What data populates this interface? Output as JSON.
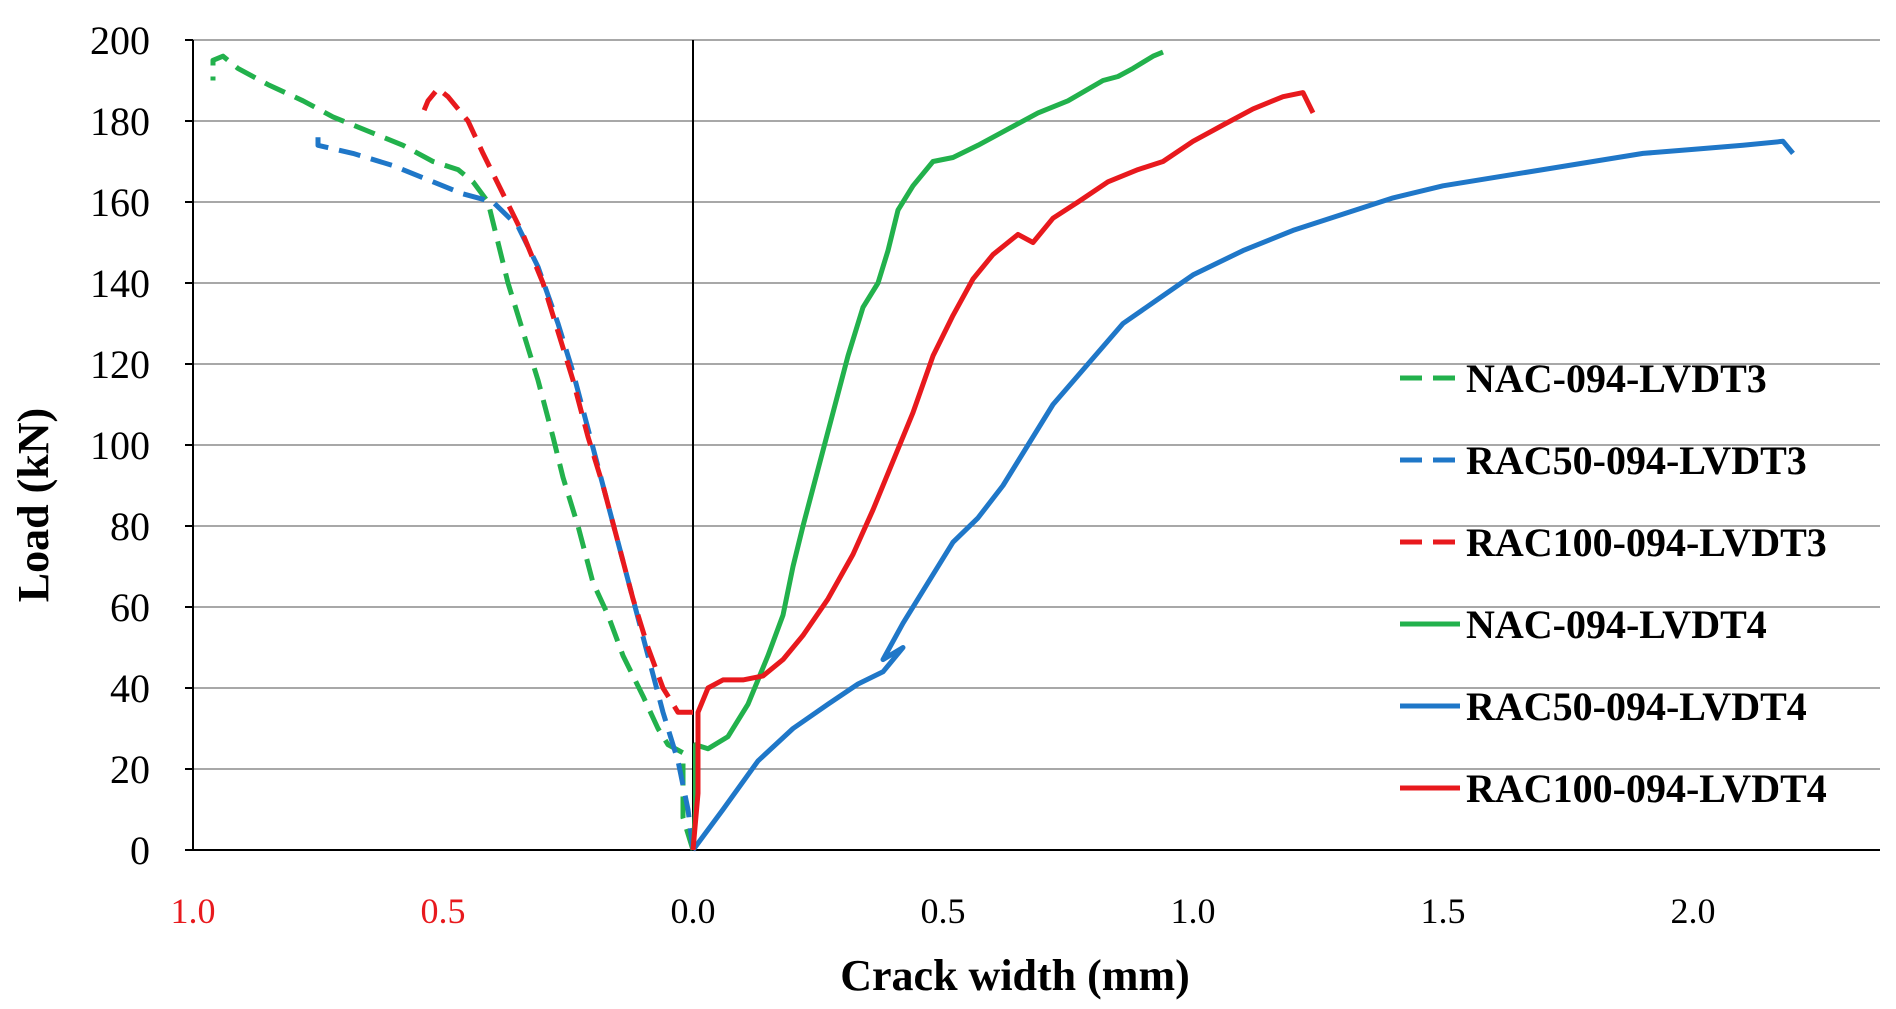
{
  "chart_data": {
    "type": "line",
    "xlabel": "Crack width (mm)",
    "ylabel": "Load (kN)",
    "ylim": [
      0,
      200
    ],
    "x_range_display": [
      -1.0,
      2.4
    ],
    "grid": "horizontal",
    "legend_position": "right",
    "y_ticks": [
      "0",
      "20",
      "40",
      "60",
      "80",
      "100",
      "120",
      "140",
      "160",
      "180",
      "200"
    ],
    "x_ticks_left": [
      "1.0",
      "0.5"
    ],
    "x_ticks_right": [
      "0.0",
      "0.5",
      "1.0",
      "1.5",
      "2.0"
    ],
    "x_ticks_left_color": "#e8191d",
    "note": "LVDT3 curves are plotted mirrored to the left of x = 0",
    "series": [
      {
        "name": "NAC-094-LVDT3",
        "color": "#22b14c",
        "dash": true,
        "side": "left",
        "points": [
          [
            0,
            0
          ],
          [
            0.02,
            8
          ],
          [
            0.02,
            24
          ],
          [
            0.05,
            26
          ],
          [
            0.07,
            30
          ],
          [
            0.1,
            38
          ],
          [
            0.14,
            48
          ],
          [
            0.17,
            58
          ],
          [
            0.2,
            66
          ],
          [
            0.23,
            80
          ],
          [
            0.26,
            92
          ],
          [
            0.28,
            102
          ],
          [
            0.31,
            116
          ],
          [
            0.34,
            128
          ],
          [
            0.37,
            140
          ],
          [
            0.39,
            150
          ],
          [
            0.41,
            160
          ],
          [
            0.44,
            165
          ],
          [
            0.47,
            168
          ],
          [
            0.52,
            170
          ],
          [
            0.58,
            174
          ],
          [
            0.66,
            178
          ],
          [
            0.72,
            181
          ],
          [
            0.78,
            185
          ],
          [
            0.85,
            189
          ],
          [
            0.91,
            193
          ],
          [
            0.94,
            196
          ],
          [
            0.96,
            195
          ],
          [
            0.96,
            190
          ]
        ]
      },
      {
        "name": "RAC50-094-LVDT3",
        "color": "#1f77c8",
        "dash": true,
        "side": "left",
        "points": [
          [
            0,
            0
          ],
          [
            0.01,
            10
          ],
          [
            0.03,
            22
          ],
          [
            0.06,
            34
          ],
          [
            0.09,
            48
          ],
          [
            0.12,
            62
          ],
          [
            0.15,
            76
          ],
          [
            0.18,
            90
          ],
          [
            0.21,
            104
          ],
          [
            0.24,
            118
          ],
          [
            0.27,
            130
          ],
          [
            0.31,
            144
          ],
          [
            0.35,
            154
          ],
          [
            0.4,
            160
          ],
          [
            0.46,
            162
          ],
          [
            0.52,
            165
          ],
          [
            0.6,
            169
          ],
          [
            0.68,
            172
          ],
          [
            0.75,
            174
          ],
          [
            0.75,
            176
          ]
        ]
      },
      {
        "name": "RAC100-094-LVDT3",
        "color": "#e8191d",
        "dash": true,
        "side": "left",
        "points": [
          [
            0,
            34
          ],
          [
            0.03,
            34
          ],
          [
            0.06,
            40
          ],
          [
            0.09,
            50
          ],
          [
            0.12,
            62
          ],
          [
            0.15,
            76
          ],
          [
            0.18,
            90
          ],
          [
            0.21,
            102
          ],
          [
            0.24,
            116
          ],
          [
            0.27,
            128
          ],
          [
            0.3,
            140
          ],
          [
            0.34,
            152
          ],
          [
            0.38,
            162
          ],
          [
            0.42,
            172
          ],
          [
            0.45,
            180
          ],
          [
            0.49,
            186
          ],
          [
            0.51,
            188
          ],
          [
            0.53,
            185
          ],
          [
            0.54,
            182
          ]
        ]
      },
      {
        "name": "NAC-094-LVDT4",
        "color": "#22b14c",
        "dash": false,
        "side": "right",
        "points": [
          [
            0,
            0
          ],
          [
            0.005,
            10
          ],
          [
            0.005,
            26
          ],
          [
            0.03,
            25
          ],
          [
            0.07,
            28
          ],
          [
            0.11,
            36
          ],
          [
            0.15,
            48
          ],
          [
            0.18,
            58
          ],
          [
            0.2,
            70
          ],
          [
            0.22,
            80
          ],
          [
            0.25,
            94
          ],
          [
            0.28,
            108
          ],
          [
            0.31,
            122
          ],
          [
            0.34,
            134
          ],
          [
            0.37,
            140
          ],
          [
            0.39,
            148
          ],
          [
            0.41,
            158
          ],
          [
            0.44,
            164
          ],
          [
            0.48,
            170
          ],
          [
            0.52,
            171
          ],
          [
            0.57,
            174
          ],
          [
            0.63,
            178
          ],
          [
            0.69,
            182
          ],
          [
            0.75,
            185
          ],
          [
            0.82,
            190
          ],
          [
            0.85,
            191
          ],
          [
            0.88,
            193
          ],
          [
            0.92,
            196
          ],
          [
            0.94,
            197
          ]
        ]
      },
      {
        "name": "RAC50-094-LVDT4",
        "color": "#1f77c8",
        "dash": false,
        "side": "right",
        "points": [
          [
            0,
            0
          ],
          [
            0.06,
            10
          ],
          [
            0.13,
            22
          ],
          [
            0.2,
            30
          ],
          [
            0.27,
            36
          ],
          [
            0.33,
            41
          ],
          [
            0.38,
            44
          ],
          [
            0.42,
            50
          ],
          [
            0.38,
            47
          ],
          [
            0.42,
            56
          ],
          [
            0.47,
            66
          ],
          [
            0.52,
            76
          ],
          [
            0.57,
            82
          ],
          [
            0.62,
            90
          ],
          [
            0.67,
            100
          ],
          [
            0.72,
            110
          ],
          [
            0.79,
            120
          ],
          [
            0.86,
            130
          ],
          [
            0.93,
            136
          ],
          [
            1.0,
            142
          ],
          [
            1.1,
            148
          ],
          [
            1.2,
            153
          ],
          [
            1.3,
            157
          ],
          [
            1.4,
            161
          ],
          [
            1.5,
            164
          ],
          [
            1.6,
            166
          ],
          [
            1.7,
            168
          ],
          [
            1.8,
            170
          ],
          [
            1.9,
            172
          ],
          [
            2.0,
            173
          ],
          [
            2.1,
            174
          ],
          [
            2.18,
            175
          ],
          [
            2.2,
            172
          ]
        ]
      },
      {
        "name": "RAC100-094-LVDT4",
        "color": "#e8191d",
        "dash": false,
        "side": "right",
        "points": [
          [
            0,
            0
          ],
          [
            0.01,
            14
          ],
          [
            0.01,
            34
          ],
          [
            0.03,
            40
          ],
          [
            0.06,
            42
          ],
          [
            0.1,
            42
          ],
          [
            0.14,
            43
          ],
          [
            0.18,
            47
          ],
          [
            0.22,
            53
          ],
          [
            0.27,
            62
          ],
          [
            0.32,
            73
          ],
          [
            0.36,
            84
          ],
          [
            0.4,
            96
          ],
          [
            0.44,
            108
          ],
          [
            0.48,
            122
          ],
          [
            0.52,
            132
          ],
          [
            0.56,
            141
          ],
          [
            0.6,
            147
          ],
          [
            0.65,
            152
          ],
          [
            0.68,
            150
          ],
          [
            0.72,
            156
          ],
          [
            0.77,
            160
          ],
          [
            0.83,
            165
          ],
          [
            0.89,
            168
          ],
          [
            0.94,
            170
          ],
          [
            1.0,
            175
          ],
          [
            1.06,
            179
          ],
          [
            1.12,
            183
          ],
          [
            1.18,
            186
          ],
          [
            1.22,
            187
          ],
          [
            1.24,
            182
          ]
        ]
      }
    ]
  }
}
